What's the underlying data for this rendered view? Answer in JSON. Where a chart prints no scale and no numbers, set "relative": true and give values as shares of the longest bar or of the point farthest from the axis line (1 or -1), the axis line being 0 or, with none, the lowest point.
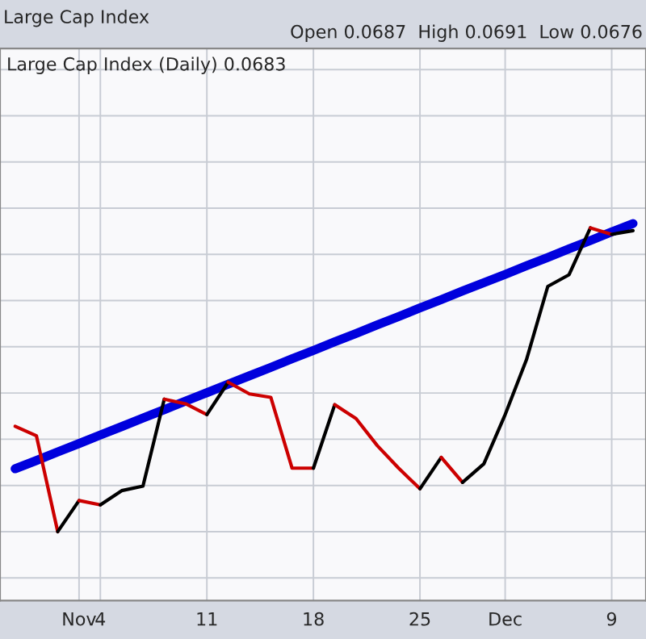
{
  "chart_data": {
    "type": "line",
    "title": "Large Cap Index",
    "subtitle": "Open 0.0687  High 0.0691  Low 0.0676",
    "annotations": [
      "Large Cap Index (Daily) 0.0683"
    ],
    "relative": true,
    "grid": true,
    "categories": [
      null,
      null,
      null,
      "Nov",
      "4",
      null,
      null,
      null,
      null,
      "11",
      null,
      null,
      null,
      null,
      "18",
      null,
      null,
      null,
      null,
      "25",
      null,
      null,
      null,
      "Dec",
      null,
      null,
      null,
      null,
      "9",
      null
    ],
    "series": [
      {
        "color": "#cc0000",
        "values": [
          0.342,
          0.311,
          0,
          null,
          null,
          null,
          null,
          null,
          null,
          null,
          null,
          null,
          null,
          null,
          null,
          null,
          null,
          null,
          null,
          null,
          null,
          null,
          null,
          null,
          null,
          null,
          null,
          null,
          null,
          null
        ]
      },
      {
        "color": "#000000",
        "values": [
          null,
          null,
          0,
          0.101,
          null,
          null,
          null,
          null,
          null,
          null,
          null,
          null,
          null,
          null,
          null,
          null,
          null,
          null,
          null,
          null,
          null,
          null,
          null,
          null,
          null,
          null,
          null,
          null,
          null,
          null
        ]
      },
      {
        "color": "#cc0000",
        "values": [
          null,
          null,
          null,
          0.101,
          0.087,
          null,
          null,
          null,
          null,
          null,
          null,
          null,
          null,
          null,
          null,
          null,
          null,
          null,
          null,
          null,
          null,
          null,
          null,
          null,
          null,
          null,
          null,
          null,
          null,
          null
        ]
      },
      {
        "color": "#000000",
        "values": [
          null,
          null,
          null,
          null,
          0.087,
          0.133,
          0.148,
          0.43,
          null,
          null,
          null,
          null,
          null,
          null,
          null,
          null,
          null,
          null,
          null,
          null,
          null,
          null,
          null,
          null,
          null,
          null,
          null,
          null,
          null,
          null
        ]
      },
      {
        "color": "#cc0000",
        "values": [
          null,
          null,
          null,
          null,
          null,
          null,
          null,
          0.43,
          0.415,
          0.38,
          null,
          null,
          null,
          null,
          null,
          null,
          null,
          null,
          null,
          null,
          null,
          null,
          null,
          null,
          null,
          null,
          null,
          null,
          null,
          null
        ]
      },
      {
        "color": "#000000",
        "values": [
          null,
          null,
          null,
          null,
          null,
          null,
          null,
          null,
          null,
          0.38,
          0.485,
          null,
          null,
          null,
          null,
          null,
          null,
          null,
          null,
          null,
          null,
          null,
          null,
          null,
          null,
          null,
          null,
          null,
          null,
          null
        ]
      },
      {
        "color": "#cc0000",
        "values": [
          null,
          null,
          null,
          null,
          null,
          null,
          null,
          null,
          null,
          null,
          0.485,
          0.447,
          0.436,
          0.206,
          0.206,
          null,
          null,
          null,
          null,
          null,
          null,
          null,
          null,
          null,
          null,
          null,
          null,
          null,
          null,
          null
        ]
      },
      {
        "color": "#000000",
        "values": [
          null,
          null,
          null,
          null,
          null,
          null,
          null,
          null,
          null,
          null,
          null,
          null,
          null,
          null,
          0.206,
          0.412,
          null,
          null,
          null,
          null,
          null,
          null,
          null,
          null,
          null,
          null,
          null,
          null,
          null,
          null
        ]
      },
      {
        "color": "#cc0000",
        "values": [
          null,
          null,
          null,
          null,
          null,
          null,
          null,
          null,
          null,
          null,
          null,
          null,
          null,
          null,
          null,
          0.412,
          0.367,
          0.279,
          0.206,
          0.139,
          null,
          null,
          null,
          null,
          null,
          null,
          null,
          null,
          null,
          null
        ]
      },
      {
        "color": "#000000",
        "values": [
          null,
          null,
          null,
          null,
          null,
          null,
          null,
          null,
          null,
          null,
          null,
          null,
          null,
          null,
          null,
          null,
          null,
          null,
          null,
          0.139,
          0.241,
          null,
          null,
          null,
          null,
          null,
          null,
          null,
          null,
          null
        ]
      },
      {
        "color": "#cc0000",
        "values": [
          null,
          null,
          null,
          null,
          null,
          null,
          null,
          null,
          null,
          null,
          null,
          null,
          null,
          null,
          null,
          null,
          null,
          null,
          null,
          null,
          0.241,
          0.16,
          null,
          null,
          null,
          null,
          null,
          null,
          null,
          null
        ]
      },
      {
        "color": "#000000",
        "values": [
          null,
          null,
          null,
          null,
          null,
          null,
          null,
          null,
          null,
          null,
          null,
          null,
          null,
          null,
          null,
          null,
          null,
          null,
          null,
          null,
          null,
          0.16,
          0.22,
          0.38,
          0.558,
          0.796,
          0.834,
          0.986,
          null,
          null
        ]
      },
      {
        "color": "#cc0000",
        "values": [
          null,
          null,
          null,
          null,
          null,
          null,
          null,
          null,
          null,
          null,
          null,
          null,
          null,
          null,
          null,
          null,
          null,
          null,
          null,
          null,
          null,
          null,
          null,
          null,
          null,
          null,
          null,
          0.986,
          0.965,
          null
        ]
      },
      {
        "color": "#000000",
        "values": [
          null,
          null,
          null,
          null,
          null,
          null,
          null,
          null,
          null,
          null,
          null,
          null,
          null,
          null,
          null,
          null,
          null,
          null,
          null,
          null,
          null,
          null,
          null,
          null,
          null,
          null,
          null,
          null,
          0.965,
          0.977
        ]
      },
      {
        "type": "line",
        "color": "#0000dd",
        "values": [
          0.204,
          0.231,
          0.259,
          0.286,
          0.314,
          0.341,
          0.369,
          0.396,
          0.424,
          0.451,
          0.479,
          0.506,
          0.533,
          0.561,
          0.588,
          0.616,
          0.643,
          0.671,
          0.698,
          0.726,
          0.753,
          0.781,
          0.808,
          0.835,
          0.863,
          0.89,
          0.918,
          0.945,
          0.973,
          1.0
        ]
      }
    ]
  }
}
